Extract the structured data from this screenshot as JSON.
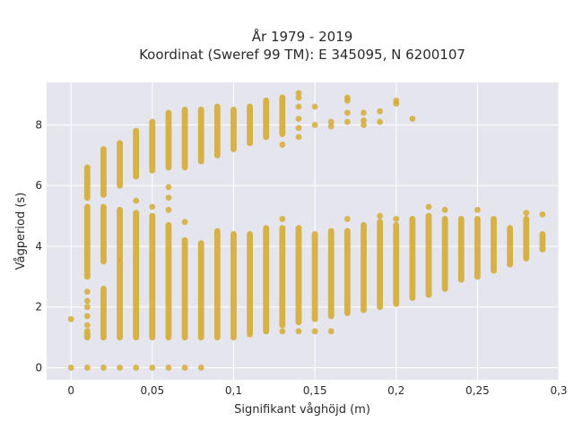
{
  "chart_data": {
    "type": "scatter",
    "title_line1": "År 1979 - 2019",
    "title_line2": "Koordinat (Sweref 99 TM): E 345095, N 6200107",
    "xlabel": "Signifikant våghöjd (m)",
    "ylabel": "Vågperiod (s)",
    "xlim": [
      -0.015,
      0.3
    ],
    "ylim": [
      -0.4,
      9.4
    ],
    "grid": true,
    "legend": "none",
    "x_ticks": [
      0,
      0.05,
      0.1,
      0.15,
      0.2,
      0.25,
      0.3
    ],
    "x_tick_labels": [
      "0",
      "0,05",
      "0,1",
      "0,15",
      "0,2",
      "0,25",
      "0,3"
    ],
    "y_ticks": [
      0,
      2,
      4,
      6,
      8
    ],
    "y_tick_labels": [
      "0",
      "2",
      "4",
      "6",
      "8"
    ],
    "colors": {
      "marker": "#d4a82a",
      "plot_bg": "#e5e5ee",
      "grid": "#ffffff"
    },
    "columns": [
      {
        "x": 0.0,
        "ranges": [],
        "points": [
          0.0,
          1.6
        ]
      },
      {
        "x": 0.01,
        "ranges": [
          [
            1.0,
            1.2
          ],
          [
            3.0,
            5.3
          ],
          [
            5.6,
            6.6
          ]
        ],
        "points": [
          0.0,
          1.4,
          1.7,
          2.0,
          2.2,
          2.5
        ]
      },
      {
        "x": 0.02,
        "ranges": [
          [
            1.0,
            2.6
          ],
          [
            3.5,
            5.3
          ],
          [
            5.7,
            7.2
          ]
        ],
        "points": [
          0.0
        ]
      },
      {
        "x": 0.03,
        "ranges": [
          [
            1.0,
            3.5
          ],
          [
            3.6,
            5.2
          ],
          [
            6.0,
            7.4
          ]
        ],
        "points": [
          0.0
        ]
      },
      {
        "x": 0.04,
        "ranges": [
          [
            1.0,
            5.1
          ],
          [
            6.3,
            7.8
          ]
        ],
        "points": [
          0.0,
          5.5
        ]
      },
      {
        "x": 0.05,
        "ranges": [
          [
            1.0,
            5.0
          ],
          [
            6.5,
            8.1
          ]
        ],
        "points": [
          0.0,
          5.3
        ]
      },
      {
        "x": 0.06,
        "ranges": [
          [
            1.0,
            4.7
          ],
          [
            6.6,
            8.4
          ]
        ],
        "points": [
          0.0,
          5.2,
          5.6,
          5.95
        ]
      },
      {
        "x": 0.07,
        "ranges": [
          [
            1.0,
            4.2
          ],
          [
            6.6,
            8.5
          ]
        ],
        "points": [
          0.0,
          4.8
        ]
      },
      {
        "x": 0.08,
        "ranges": [
          [
            1.0,
            4.1
          ],
          [
            6.8,
            8.5
          ]
        ],
        "points": [
          0.0
        ]
      },
      {
        "x": 0.09,
        "ranges": [
          [
            1.0,
            4.5
          ],
          [
            7.0,
            8.6
          ]
        ],
        "points": []
      },
      {
        "x": 0.1,
        "ranges": [
          [
            1.0,
            4.4
          ],
          [
            7.2,
            8.5
          ]
        ],
        "points": []
      },
      {
        "x": 0.11,
        "ranges": [
          [
            1.1,
            4.4
          ],
          [
            7.4,
            8.6
          ]
        ],
        "points": []
      },
      {
        "x": 0.12,
        "ranges": [
          [
            1.2,
            4.6
          ],
          [
            7.6,
            8.8
          ]
        ],
        "points": []
      },
      {
        "x": 0.13,
        "ranges": [
          [
            1.4,
            4.6
          ],
          [
            7.7,
            8.9
          ]
        ],
        "points": [
          1.2,
          4.9,
          7.35
        ]
      },
      {
        "x": 0.14,
        "ranges": [
          [
            1.5,
            4.6
          ]
        ],
        "points": [
          1.2,
          7.6,
          7.9,
          8.2,
          8.6,
          8.9,
          9.05
        ]
      },
      {
        "x": 0.15,
        "ranges": [
          [
            1.6,
            4.4
          ]
        ],
        "points": [
          1.2,
          8.0,
          8.6
        ]
      },
      {
        "x": 0.16,
        "ranges": [
          [
            1.7,
            4.5
          ]
        ],
        "points": [
          1.2,
          7.95,
          8.1
        ]
      },
      {
        "x": 0.17,
        "ranges": [
          [
            1.8,
            4.5
          ]
        ],
        "points": [
          4.9,
          8.1,
          8.4,
          8.8,
          8.9
        ]
      },
      {
        "x": 0.18,
        "ranges": [
          [
            1.9,
            4.7
          ]
        ],
        "points": [
          8.0,
          8.15,
          8.4
        ]
      },
      {
        "x": 0.19,
        "ranges": [
          [
            2.0,
            4.8
          ]
        ],
        "points": [
          5.0,
          8.1,
          8.45
        ]
      },
      {
        "x": 0.2,
        "ranges": [
          [
            2.1,
            4.7
          ]
        ],
        "points": [
          4.9,
          8.7,
          8.8
        ]
      },
      {
        "x": 0.21,
        "ranges": [
          [
            2.3,
            4.9
          ]
        ],
        "points": [
          8.2
        ]
      },
      {
        "x": 0.22,
        "ranges": [
          [
            2.4,
            5.0
          ]
        ],
        "points": [
          5.3
        ]
      },
      {
        "x": 0.23,
        "ranges": [
          [
            2.6,
            4.9
          ]
        ],
        "points": [
          5.2
        ]
      },
      {
        "x": 0.24,
        "ranges": [
          [
            2.9,
            4.9
          ]
        ],
        "points": []
      },
      {
        "x": 0.25,
        "ranges": [
          [
            3.0,
            4.9
          ]
        ],
        "points": [
          5.2
        ]
      },
      {
        "x": 0.26,
        "ranges": [
          [
            3.2,
            4.9
          ]
        ],
        "points": []
      },
      {
        "x": 0.27,
        "ranges": [
          [
            3.4,
            4.6
          ]
        ],
        "points": []
      },
      {
        "x": 0.28,
        "ranges": [
          [
            3.6,
            4.9
          ]
        ],
        "points": [
          5.1
        ]
      },
      {
        "x": 0.29,
        "ranges": [
          [
            3.9,
            4.4
          ]
        ],
        "points": [
          5.05
        ]
      }
    ]
  }
}
